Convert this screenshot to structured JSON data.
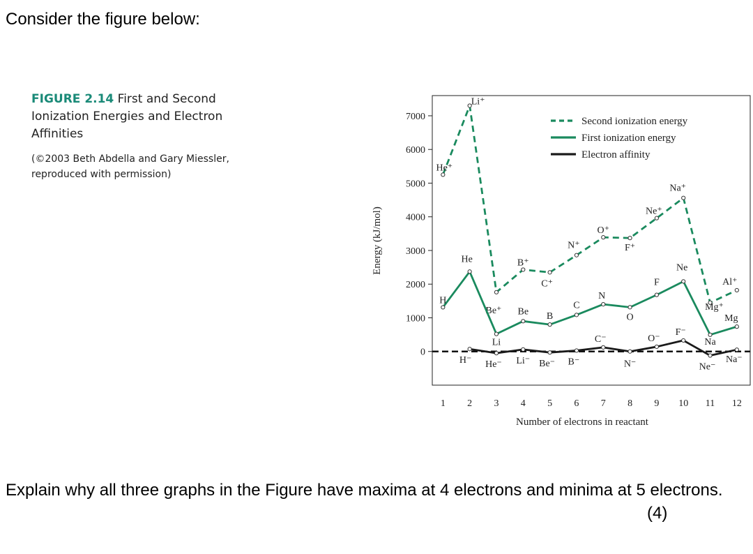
{
  "intro_text": "Consider the figure below:",
  "caption": {
    "figure_label": "FIGURE 2.14",
    "figure_title": "First and Second Ionization Energies and Electron Affinities",
    "credit": "(©2003 Beth Abdella and Gary Miessler, reproduced with permission)"
  },
  "question": {
    "text": "Explain why all three graphs in the Figure have maxima at 4 electrons and minima at 5 electrons.",
    "marks": "(4)"
  },
  "colors": {
    "second": "#1a8a5e",
    "first": "#1a8a5e",
    "affinity": "#1a1a1a"
  },
  "chart_data": {
    "type": "line",
    "xlabel": "Number of electrons in reactant",
    "ylabel": "Energy (kJ/mol)",
    "ylim": [
      -1000,
      7600
    ],
    "xlim": [
      0.6,
      12.5
    ],
    "yticks": [
      0,
      1000,
      2000,
      3000,
      4000,
      5000,
      6000,
      7000
    ],
    "xticks": [
      1,
      2,
      3,
      4,
      5,
      6,
      7,
      8,
      9,
      10,
      11,
      12
    ],
    "legend_position": "top-right",
    "series": [
      {
        "name": "Second ionization energy",
        "style": "dashed",
        "x": [
          1,
          2,
          3,
          4,
          5,
          6,
          7,
          8,
          9,
          10,
          11,
          12
        ],
        "y": [
          5250,
          7300,
          1760,
          2430,
          2350,
          2860,
          3390,
          3370,
          3960,
          4560,
          1450,
          1820
        ],
        "labels": [
          "He⁺",
          "Li⁺",
          "Be⁺",
          "B⁺",
          "C⁺",
          "N⁺",
          "O⁺",
          "F⁺",
          "Ne⁺",
          "Na⁺",
          "Mg⁺",
          "Al⁺"
        ]
      },
      {
        "name": "First ionization energy",
        "style": "solid",
        "x": [
          1,
          2,
          3,
          4,
          5,
          6,
          7,
          8,
          9,
          10,
          11,
          12
        ],
        "y": [
          1312,
          2372,
          520,
          900,
          800,
          1086,
          1402,
          1314,
          1681,
          2081,
          496,
          738
        ],
        "labels": [
          "H",
          "He",
          "Li",
          "Be",
          "B",
          "C",
          "N",
          "O",
          "F",
          "Ne",
          "Na",
          "Mg"
        ]
      },
      {
        "name": "Electron affinity",
        "style": "solid",
        "x": [
          2,
          3,
          4,
          5,
          6,
          7,
          8,
          9,
          10,
          11,
          12
        ],
        "y": [
          73,
          -50,
          60,
          -30,
          27,
          122,
          0,
          141,
          328,
          -120,
          53
        ],
        "labels": [
          "H⁻",
          "He⁻",
          "Li⁻",
          "Be⁻",
          "B⁻",
          "C⁻",
          "N⁻",
          "O⁻",
          "F⁻",
          "Ne⁻",
          "Na⁻"
        ]
      }
    ]
  }
}
